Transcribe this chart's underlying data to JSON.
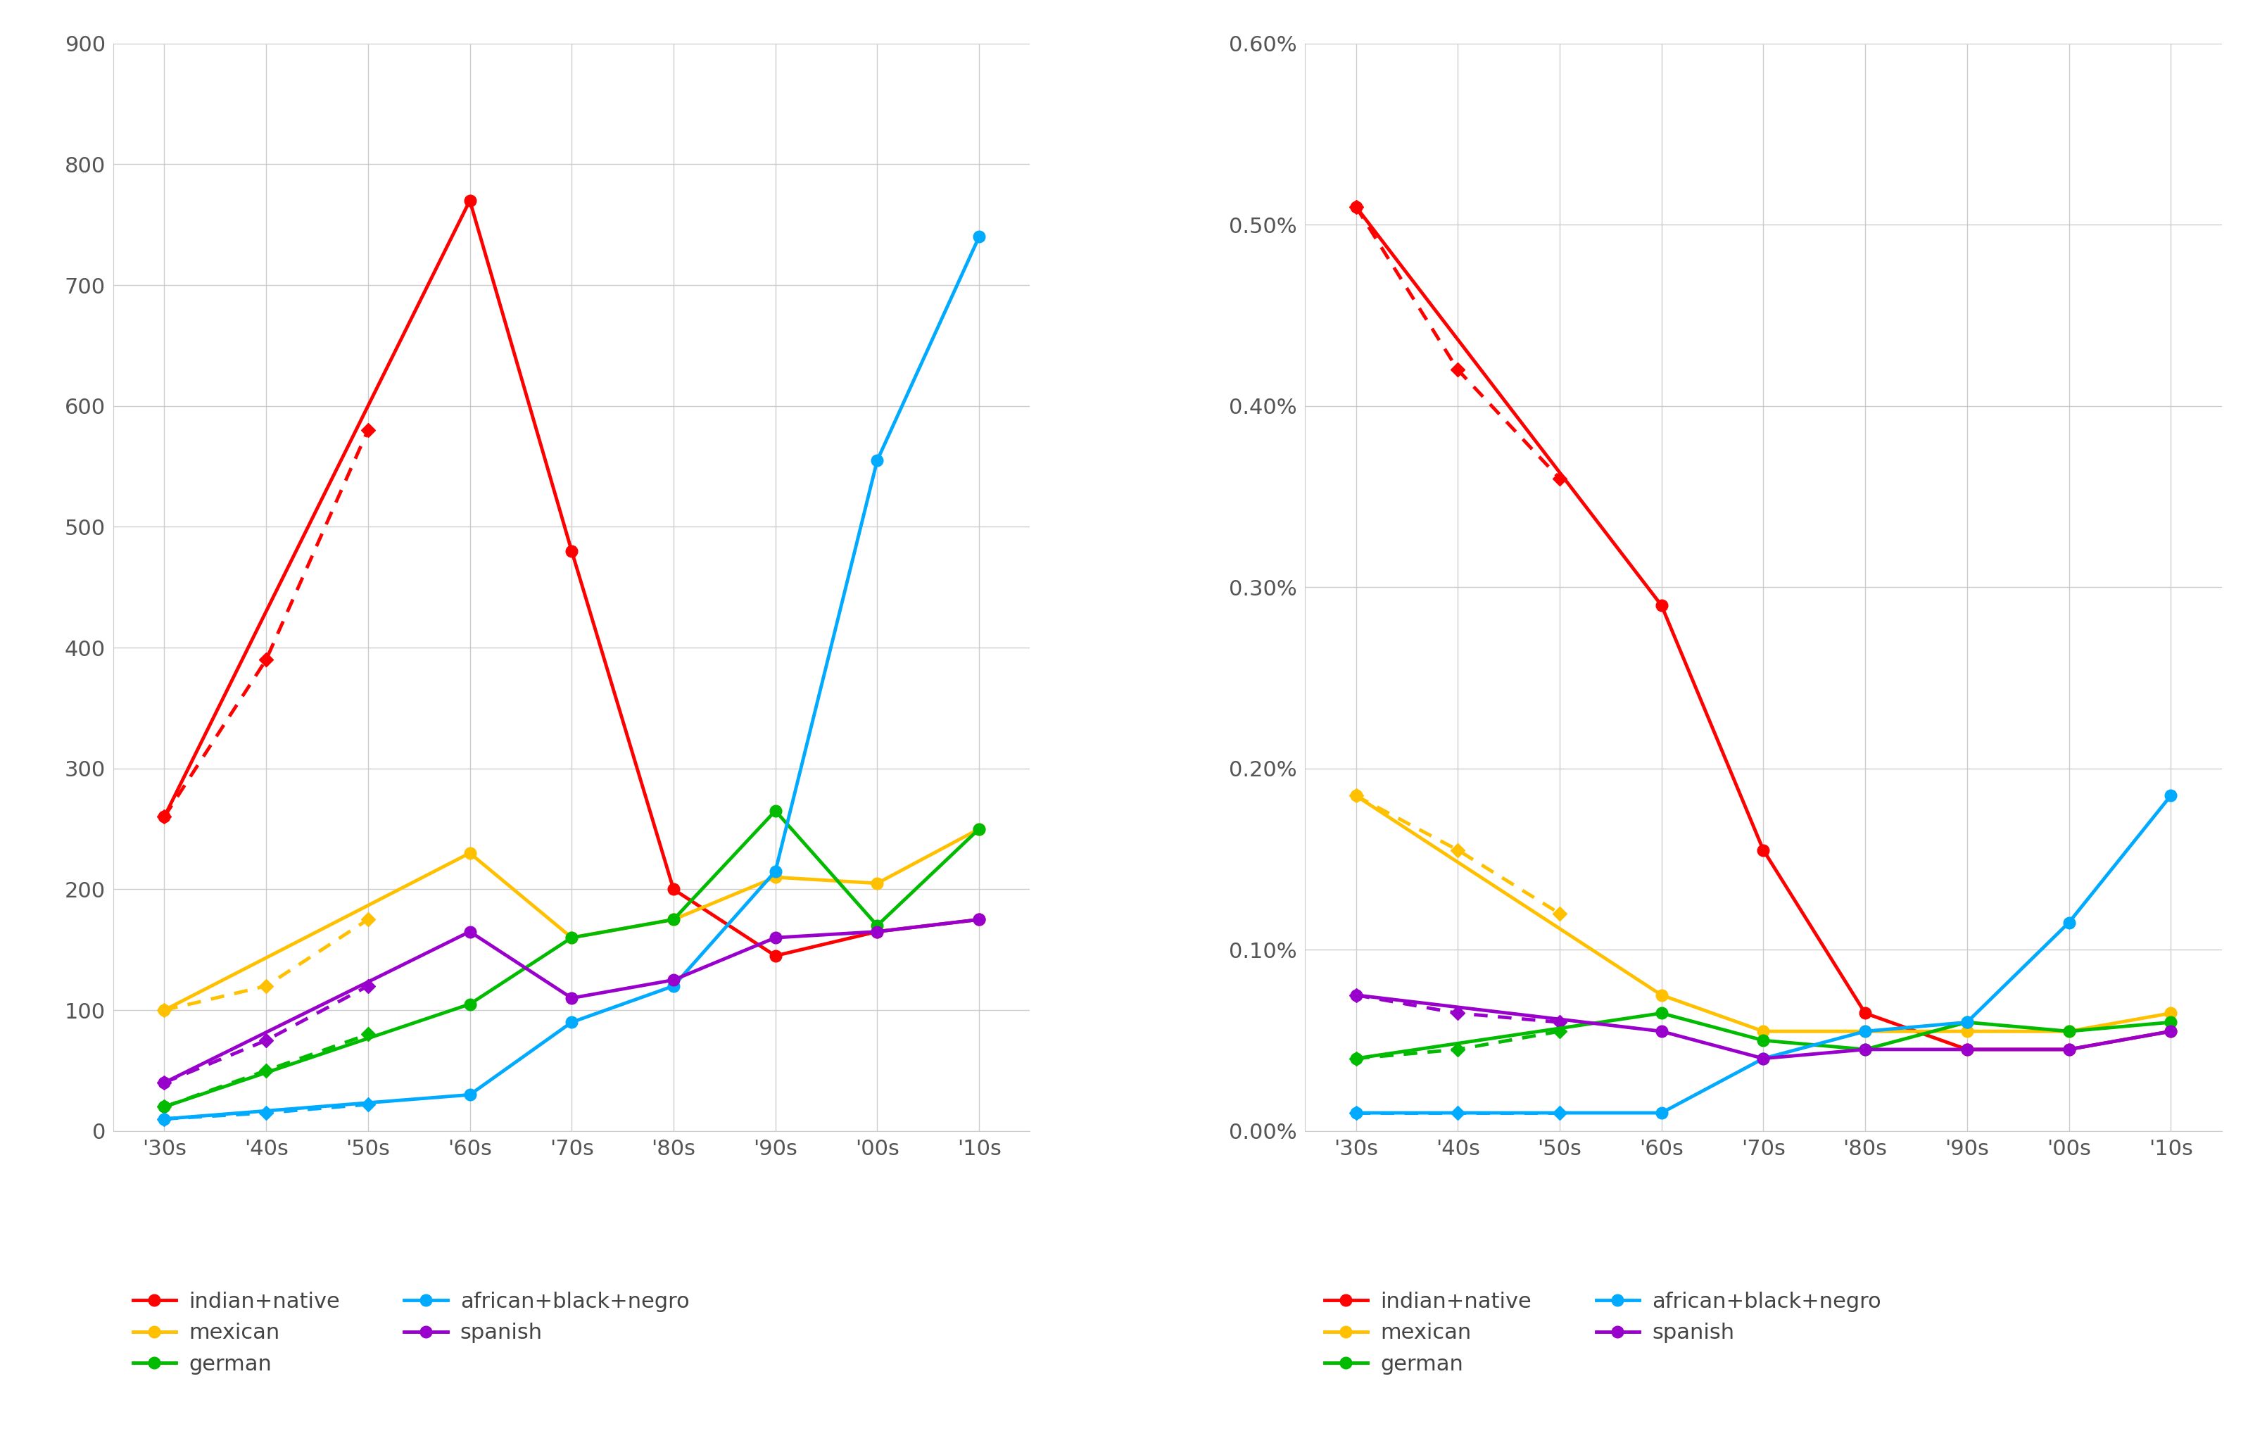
{
  "x_labels": [
    "'30s",
    "'40s",
    "'50s",
    "'60s",
    "'70s",
    "'80s",
    "'90s",
    "'00s",
    "'10s"
  ],
  "x_values": [
    0,
    1,
    2,
    3,
    4,
    5,
    6,
    7,
    8
  ],
  "left_chart": {
    "ylim": [
      0,
      900
    ],
    "yticks": [
      0,
      100,
      200,
      300,
      400,
      500,
      600,
      700,
      800,
      900
    ],
    "series": {
      "indian+native_solid": {
        "values": [
          260,
          null,
          null,
          770,
          480,
          200,
          145,
          165,
          175
        ],
        "color": "#ff0000",
        "dashed": false
      },
      "indian+native_dashed": {
        "values": [
          260,
          390,
          580,
          null,
          null,
          null,
          null,
          null,
          null
        ],
        "color": "#ff0000",
        "dashed": true
      },
      "mexican_solid": {
        "values": [
          100,
          null,
          null,
          230,
          160,
          175,
          210,
          205,
          250
        ],
        "color": "#ffc000",
        "dashed": false
      },
      "mexican_dashed": {
        "values": [
          100,
          120,
          175,
          null,
          null,
          null,
          null,
          null,
          null
        ],
        "color": "#ffc000",
        "dashed": true
      },
      "german_solid": {
        "values": [
          20,
          null,
          null,
          105,
          160,
          175,
          265,
          170,
          250
        ],
        "color": "#00bb00",
        "dashed": false
      },
      "german_dashed": {
        "values": [
          20,
          50,
          80,
          null,
          null,
          null,
          null,
          null,
          null
        ],
        "color": "#00bb00",
        "dashed": true
      },
      "african+black+negro_solid": {
        "values": [
          10,
          null,
          null,
          30,
          90,
          120,
          215,
          555,
          740
        ],
        "color": "#00aaff",
        "dashed": false
      },
      "african+black+negro_dashed": {
        "values": [
          10,
          15,
          22,
          null,
          null,
          null,
          null,
          null,
          null
        ],
        "color": "#00aaff",
        "dashed": true
      },
      "spanish_solid": {
        "values": [
          40,
          null,
          null,
          165,
          110,
          125,
          160,
          165,
          175
        ],
        "color": "#9900cc",
        "dashed": false
      },
      "spanish_dashed": {
        "values": [
          40,
          75,
          120,
          null,
          null,
          null,
          null,
          null,
          null
        ],
        "color": "#9900cc",
        "dashed": true
      }
    }
  },
  "right_chart": {
    "ylim": [
      0,
      0.006
    ],
    "yticks": [
      0,
      0.001,
      0.002,
      0.003,
      0.004,
      0.005,
      0.006
    ],
    "ytick_labels": [
      "0.00%",
      "0.10%",
      "0.20%",
      "0.30%",
      "0.40%",
      "0.50%",
      "0.60%"
    ],
    "series": {
      "indian+native_solid": {
        "values": [
          0.0051,
          null,
          null,
          0.0029,
          0.00155,
          0.00065,
          0.00045,
          0.00045,
          0.00055
        ],
        "color": "#ff0000",
        "dashed": false
      },
      "indian+native_dashed": {
        "values": [
          0.0051,
          0.0042,
          0.0036,
          null,
          null,
          null,
          null,
          null,
          null
        ],
        "color": "#ff0000",
        "dashed": true
      },
      "mexican_solid": {
        "values": [
          0.00185,
          null,
          null,
          0.00075,
          0.00055,
          0.00055,
          0.00055,
          0.00055,
          0.00065
        ],
        "color": "#ffc000",
        "dashed": false
      },
      "mexican_dashed": {
        "values": [
          0.00185,
          0.00155,
          0.0012,
          null,
          null,
          null,
          null,
          null,
          null
        ],
        "color": "#ffc000",
        "dashed": true
      },
      "german_solid": {
        "values": [
          0.0004,
          null,
          null,
          0.00065,
          0.0005,
          0.00045,
          0.0006,
          0.00055,
          0.0006
        ],
        "color": "#00bb00",
        "dashed": false
      },
      "german_dashed": {
        "values": [
          0.0004,
          0.00045,
          0.00055,
          null,
          null,
          null,
          null,
          null,
          null
        ],
        "color": "#00bb00",
        "dashed": true
      },
      "african+black+negro_solid": {
        "values": [
          0.0001,
          null,
          null,
          0.0001,
          0.0004,
          0.00055,
          0.0006,
          0.00115,
          0.00185
        ],
        "color": "#00aaff",
        "dashed": false
      },
      "african+black+negro_dashed": {
        "values": [
          0.0001,
          0.0001,
          0.0001,
          null,
          null,
          null,
          null,
          null,
          null
        ],
        "color": "#00aaff",
        "dashed": true
      },
      "spanish_solid": {
        "values": [
          0.00075,
          null,
          null,
          0.00055,
          0.0004,
          0.00045,
          0.00045,
          0.00045,
          0.00055
        ],
        "color": "#9900cc",
        "dashed": false
      },
      "spanish_dashed": {
        "values": [
          0.00075,
          0.00065,
          0.0006,
          null,
          null,
          null,
          null,
          null,
          null
        ],
        "color": "#9900cc",
        "dashed": true
      }
    }
  },
  "legend_entries": [
    {
      "label": "indian+native",
      "color": "#ff0000"
    },
    {
      "label": "mexican",
      "color": "#ffc000"
    },
    {
      "label": "german",
      "color": "#00bb00"
    },
    {
      "label": "african+black+negro",
      "color": "#00aaff"
    },
    {
      "label": "spanish",
      "color": "#9900cc"
    }
  ],
  "background_color": "#ffffff",
  "grid_color": "#cccccc",
  "line_width": 3.5,
  "marker_size": 12,
  "dash_marker_size": 10,
  "tick_font_size": 22,
  "legend_font_size": 22
}
